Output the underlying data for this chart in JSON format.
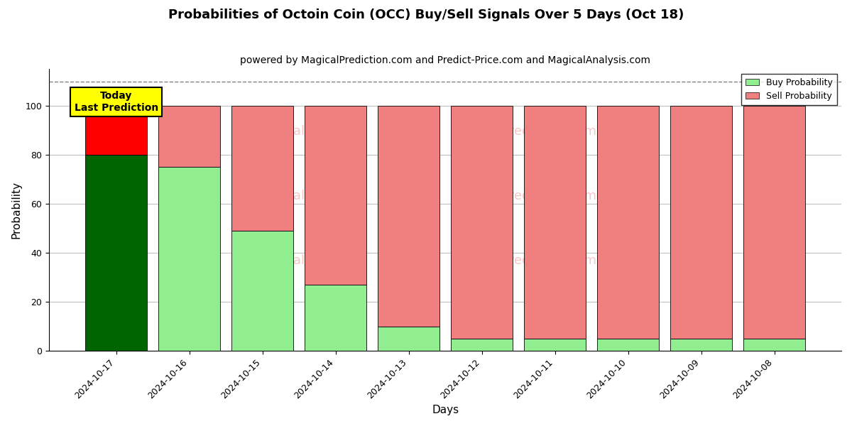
{
  "title": "Probabilities of Octoin Coin (OCC) Buy/Sell Signals Over 5 Days (Oct 18)",
  "subtitle": "powered by MagicalPrediction.com and Predict-Price.com and MagicalAnalysis.com",
  "xlabel": "Days",
  "ylabel": "Probability",
  "categories": [
    "2024-10-17",
    "2024-10-16",
    "2024-10-15",
    "2024-10-14",
    "2024-10-13",
    "2024-10-12",
    "2024-10-11",
    "2024-10-10",
    "2024-10-09",
    "2024-10-08"
  ],
  "buy_values": [
    80,
    75,
    49,
    27,
    10,
    5,
    5,
    5,
    5,
    5
  ],
  "sell_values": [
    20,
    25,
    51,
    73,
    90,
    95,
    95,
    95,
    95,
    95
  ],
  "buy_colors": [
    "#006400",
    "#90EE90",
    "#90EE90",
    "#90EE90",
    "#90EE90",
    "#90EE90",
    "#90EE90",
    "#90EE90",
    "#90EE90",
    "#90EE90"
  ],
  "sell_colors": [
    "#FF0000",
    "#F08080",
    "#F08080",
    "#F08080",
    "#F08080",
    "#F08080",
    "#F08080",
    "#F08080",
    "#F08080",
    "#F08080"
  ],
  "legend_buy_color": "#90EE90",
  "legend_sell_color": "#F08080",
  "today_label": "Today\nLast Prediction",
  "today_bg": "#FFFF00",
  "dashed_line_y": 110,
  "ylim": [
    0,
    115
  ],
  "yticks": [
    0,
    20,
    40,
    60,
    80,
    100
  ],
  "watermark_color": "#F08080",
  "bg_color": "#ffffff",
  "grid_color": "#bbbbbb",
  "title_fontsize": 13,
  "subtitle_fontsize": 10,
  "axis_label_fontsize": 11,
  "tick_fontsize": 9,
  "bar_width": 0.85
}
